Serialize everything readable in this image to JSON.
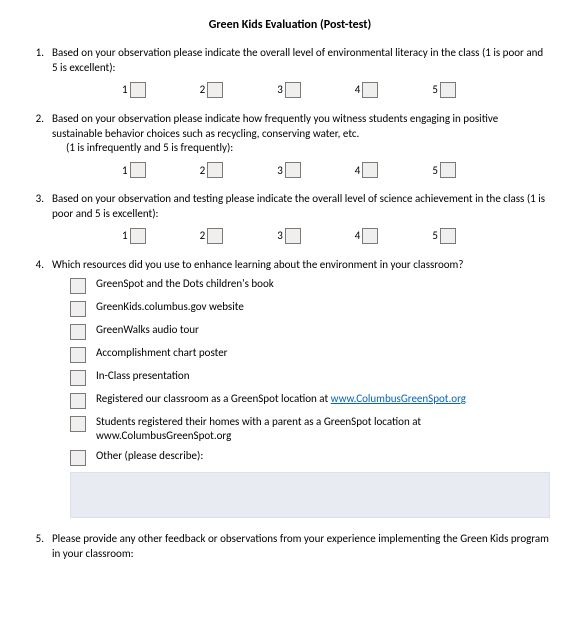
{
  "title": "Green Kids Evaluation (Post-test)",
  "rating_labels": [
    "1",
    "2",
    "3",
    "4",
    "5"
  ],
  "box_bg": "#f0efee",
  "box_border": "#7a7a7a",
  "textarea_bg": "#e8ebf2",
  "link_color": "#0563c1",
  "questions": {
    "q1": {
      "num": "1.",
      "text": "Based on your observation please indicate the overall level of environmental literacy in the class (1 is poor and 5 is excellent):"
    },
    "q2": {
      "num": "2.",
      "line1": "Based on your observation please indicate how frequently you witness students engaging in positive sustainable behavior choices such as recycling, conserving water, etc.",
      "line2": "(1 is infrequently and 5 is frequently):"
    },
    "q3": {
      "num": "3.",
      "text": "Based on your observation and testing please indicate the overall level of science achievement in the class (1 is poor and 5 is excellent):"
    },
    "q4": {
      "num": "4.",
      "text": "Which resources did you use to enhance learning about the environment in your classroom?",
      "resources": [
        "GreenSpot and the Dots children's book",
        "GreenKids.columbus.gov website",
        "GreenWalks audio tour",
        "Accomplishment chart poster",
        "In-Class presentation"
      ],
      "r6_pre": "Registered our classroom as a GreenSpot location at ",
      "r6_link": "www.ColumbusGreenSpot.org",
      "r7": "Students registered their homes with a parent as a GreenSpot location at www.ColumbusGreenSpot.org",
      "r8": "Other (please describe):"
    },
    "q5": {
      "num": "5.",
      "text": "Please provide any other feedback or observations from your experience implementing the Green Kids program in your classroom:"
    }
  }
}
